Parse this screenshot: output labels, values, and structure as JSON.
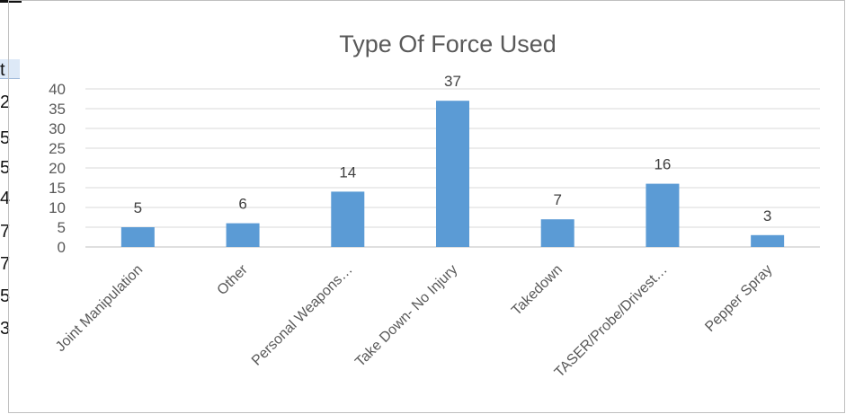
{
  "chart_data": {
    "type": "bar",
    "title": "Type Of Force Used",
    "xlabel": "",
    "ylabel": "",
    "categories": [
      "Joint Manipulation",
      "Other",
      "Personal Weapons…",
      "Take Down- No Injury",
      "Takedown",
      "TASER/Probe/Drivest…",
      "Pepper Spray"
    ],
    "values": [
      5,
      6,
      14,
      37,
      7,
      16,
      3
    ],
    "ylim": [
      0,
      40
    ],
    "yticks": [
      "0",
      "5",
      "10",
      "15",
      "20",
      "25",
      "30",
      "35",
      "40"
    ],
    "bar_color": "#5b9bd5",
    "grid": true,
    "legend": "none"
  },
  "background_fragments": {
    "left_edge_glyphs": [
      "t",
      "2",
      "5",
      "5",
      "4",
      "7",
      "7",
      "5",
      "3"
    ]
  }
}
